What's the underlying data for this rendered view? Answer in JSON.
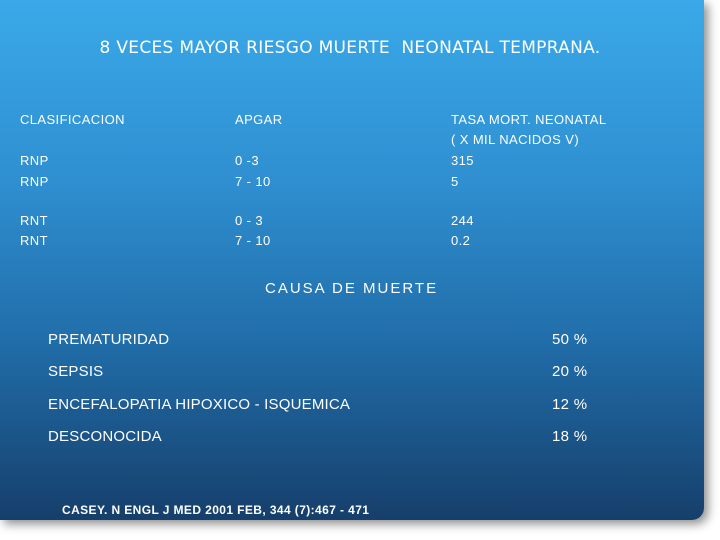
{
  "title": "8 VECES MAYOR RIESGO MUERTE  NEONATAL TEMPRANA.",
  "table": {
    "headers": {
      "clasificacion": "CLASIFICACION",
      "apgar": "APGAR",
      "tasa_line1": "TASA  MORT. NEONATAL",
      "tasa_line2": "( X MIL NACIDOS V)"
    },
    "rows": [
      {
        "clasificacion": "RNP",
        "apgar": "0 -3",
        "tasa": "315"
      },
      {
        "clasificacion": "RNP",
        "apgar": "7 - 10",
        "tasa": "5"
      },
      {
        "clasificacion": "RNT",
        "apgar": "0 - 3",
        "tasa": "244"
      },
      {
        "clasificacion": "RNT",
        "apgar": "7 - 10",
        "tasa": "0.2"
      }
    ]
  },
  "causes": {
    "heading": "CAUSA DE  MUERTE",
    "items": [
      {
        "name": "PREMATURIDAD",
        "percent": "50 %"
      },
      {
        "name": "SEPSIS",
        "percent": "20 %"
      },
      {
        "name": "ENCEFALOPATIA HIPOXICO - ISQUEMICA",
        "percent": "12 %"
      },
      {
        "name": "DESCONOCIDA",
        "percent": "18 %"
      }
    ]
  },
  "source": "CASEY. N ENGL J MED 2001 FEB, 344 (7):467 - 471"
}
